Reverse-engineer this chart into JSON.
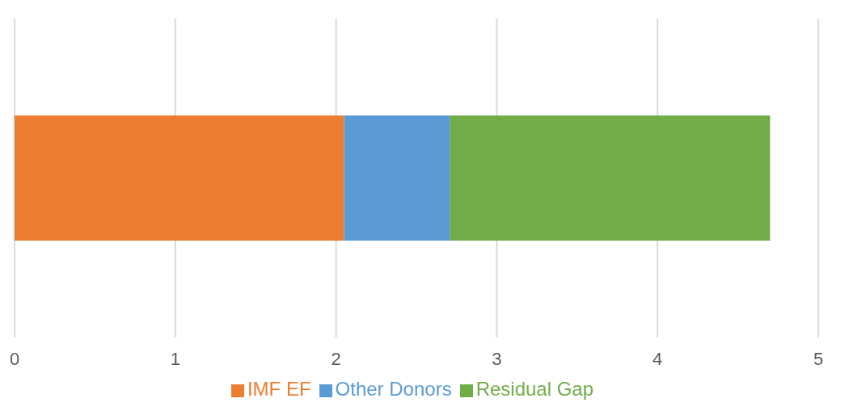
{
  "chart_data": {
    "type": "bar",
    "orientation": "horizontal",
    "stacked": true,
    "categories": [
      null
    ],
    "series": [
      {
        "name": "IMF EF",
        "color": "#ed7d31",
        "values": [
          2.05
        ]
      },
      {
        "name": "Other Donors",
        "color": "#5b9bd5",
        "values": [
          0.66
        ]
      },
      {
        "name": "Residual Gap",
        "color": "#70ad47",
        "values": [
          1.99
        ]
      }
    ],
    "xlim": [
      0,
      5
    ],
    "xticks": [
      0,
      1,
      2,
      3,
      4,
      5
    ],
    "grid": "x",
    "legend": "bottom"
  }
}
